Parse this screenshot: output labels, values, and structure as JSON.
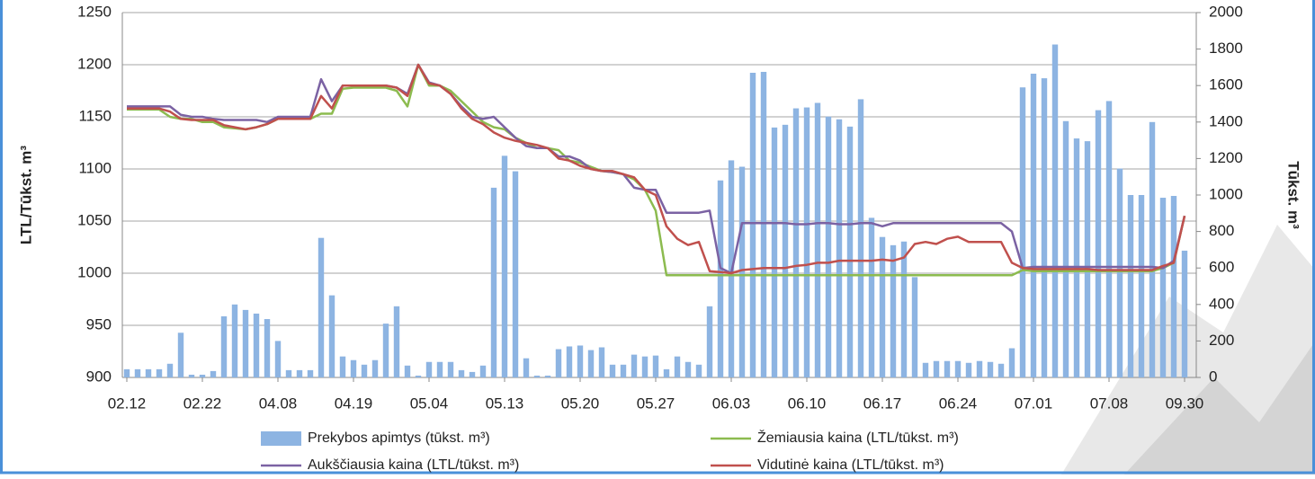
{
  "chart_data": {
    "type": "combo",
    "y_label": "LTL/Tūkst. m³",
    "y2_label": "Tūkst. m³",
    "categories": [
      "02.12",
      null,
      null,
      null,
      null,
      null,
      null,
      "02.22",
      null,
      null,
      null,
      null,
      null,
      null,
      "04.08",
      null,
      null,
      null,
      null,
      null,
      null,
      "04.19",
      null,
      null,
      null,
      null,
      null,
      null,
      "05.04",
      null,
      null,
      null,
      null,
      null,
      null,
      "05.13",
      null,
      null,
      null,
      null,
      null,
      null,
      "05.20",
      null,
      null,
      null,
      null,
      null,
      null,
      "05.27",
      null,
      null,
      null,
      null,
      null,
      null,
      "06.03",
      null,
      null,
      null,
      null,
      null,
      null,
      "06.10",
      null,
      null,
      null,
      null,
      null,
      null,
      "06.17",
      null,
      null,
      null,
      null,
      null,
      null,
      "06.24",
      null,
      null,
      null,
      null,
      null,
      null,
      "07.01",
      null,
      null,
      null,
      null,
      null,
      null,
      "07.08",
      null,
      null,
      null,
      null,
      null,
      null,
      "09.30"
    ],
    "series": [
      {
        "name": "Prekybos apimtys (tūkst. m³)",
        "type": "bar",
        "axis": "y2",
        "color": "#8db4e2",
        "values": [
          45,
          45,
          45,
          45,
          75,
          245,
          15,
          15,
          35,
          335,
          400,
          370,
          350,
          320,
          200,
          40,
          40,
          40,
          765,
          450,
          115,
          95,
          70,
          95,
          295,
          390,
          65,
          10,
          85,
          85,
          85,
          40,
          30,
          65,
          1040,
          1215,
          1130,
          105,
          10,
          10,
          155,
          170,
          175,
          150,
          165,
          70,
          70,
          125,
          115,
          120,
          45,
          115,
          85,
          70,
          390,
          1080,
          1190,
          1155,
          1670,
          1675,
          1370,
          1385,
          1475,
          1480,
          1505,
          1430,
          1415,
          1375,
          1525,
          875,
          770,
          725,
          745,
          550,
          80,
          90,
          90,
          90,
          80,
          90,
          85,
          75,
          160,
          1590,
          1665,
          1640,
          1825,
          1405,
          1310,
          1295,
          1465,
          1515,
          1145,
          1000,
          1000,
          1400,
          985,
          995,
          695
        ]
      },
      {
        "name": "Žemiausia kaina (LTL/tūkst. m³)",
        "type": "line",
        "color": "#8cbb4f",
        "values": [
          1157,
          1157,
          1157,
          1157,
          1150,
          1148,
          1148,
          1145,
          1145,
          1140,
          1139,
          1138,
          1140,
          1143,
          1148,
          1148,
          1148,
          1148,
          1153,
          1153,
          1177,
          1178,
          1178,
          1178,
          1178,
          1175,
          1160,
          1200,
          1180,
          1180,
          1175,
          1165,
          1155,
          1145,
          1140,
          1138,
          1130,
          1125,
          1120,
          1120,
          1118,
          1108,
          1106,
          1102,
          1098,
          1097,
          1095,
          1090,
          1080,
          1060,
          998,
          998,
          998,
          998,
          998,
          998,
          998,
          998,
          998,
          998,
          998,
          998,
          998,
          998,
          998,
          998,
          998,
          998,
          998,
          998,
          998,
          998,
          998,
          998,
          998,
          998,
          998,
          998,
          998,
          998,
          998,
          998,
          998,
          1003,
          1002,
          1002,
          1002,
          1002,
          1002,
          1002,
          1002,
          1002,
          1002,
          1002,
          1002,
          1002,
          1005,
          1010,
          1055
        ]
      },
      {
        "name": "Aukščiausia kaina (LTL/tūkst. m³)",
        "type": "line",
        "color": "#7b62a3",
        "values": [
          1160,
          1160,
          1160,
          1160,
          1160,
          1152,
          1150,
          1150,
          1148,
          1147,
          1147,
          1147,
          1147,
          1145,
          1150,
          1150,
          1150,
          1150,
          1186,
          1165,
          1180,
          1180,
          1180,
          1180,
          1180,
          1178,
          1172,
          1200,
          1183,
          1180,
          1172,
          1160,
          1150,
          1148,
          1150,
          1140,
          1130,
          1122,
          1120,
          1120,
          1112,
          1112,
          1108,
          1100,
          1098,
          1097,
          1095,
          1082,
          1080,
          1080,
          1058,
          1058,
          1058,
          1058,
          1060,
          1005,
          1000,
          1048,
          1048,
          1048,
          1048,
          1048,
          1047,
          1047,
          1048,
          1048,
          1047,
          1047,
          1048,
          1048,
          1045,
          1048,
          1048,
          1048,
          1048,
          1048,
          1048,
          1048,
          1048,
          1048,
          1048,
          1048,
          1040,
          1005,
          1006,
          1006,
          1006,
          1006,
          1006,
          1006,
          1006,
          1006,
          1006,
          1006,
          1006,
          1006,
          1005,
          1012,
          1055
        ]
      },
      {
        "name": "Vidutinė kaina (LTL/tūkst. m³)",
        "type": "line",
        "color": "#c0504d",
        "values": [
          1158,
          1158,
          1158,
          1158,
          1155,
          1148,
          1147,
          1147,
          1147,
          1142,
          1140,
          1138,
          1140,
          1143,
          1148,
          1148,
          1148,
          1148,
          1170,
          1158,
          1180,
          1180,
          1180,
          1180,
          1180,
          1178,
          1170,
          1200,
          1182,
          1180,
          1172,
          1158,
          1148,
          1143,
          1135,
          1130,
          1127,
          1125,
          1123,
          1120,
          1110,
          1108,
          1103,
          1100,
          1098,
          1098,
          1095,
          1092,
          1080,
          1075,
          1045,
          1033,
          1027,
          1030,
          1002,
          1001,
          1000,
          1003,
          1004,
          1005,
          1005,
          1005,
          1007,
          1008,
          1010,
          1010,
          1012,
          1012,
          1012,
          1012,
          1013,
          1012,
          1015,
          1028,
          1030,
          1028,
          1033,
          1035,
          1030,
          1030,
          1030,
          1030,
          1010,
          1005,
          1004,
          1004,
          1004,
          1004,
          1004,
          1004,
          1003,
          1003,
          1003,
          1003,
          1003,
          1003,
          1007,
          1010,
          1055
        ]
      }
    ],
    "ylim": [
      900,
      1250
    ],
    "yticks": [
      900,
      950,
      1000,
      1050,
      1100,
      1150,
      1200,
      1250
    ],
    "y2lim": [
      0,
      2000
    ],
    "y2ticks": [
      0,
      200,
      400,
      600,
      800,
      1000,
      1200,
      1400,
      1600,
      1800,
      2000
    ],
    "grid": true,
    "legend": "bottom"
  }
}
